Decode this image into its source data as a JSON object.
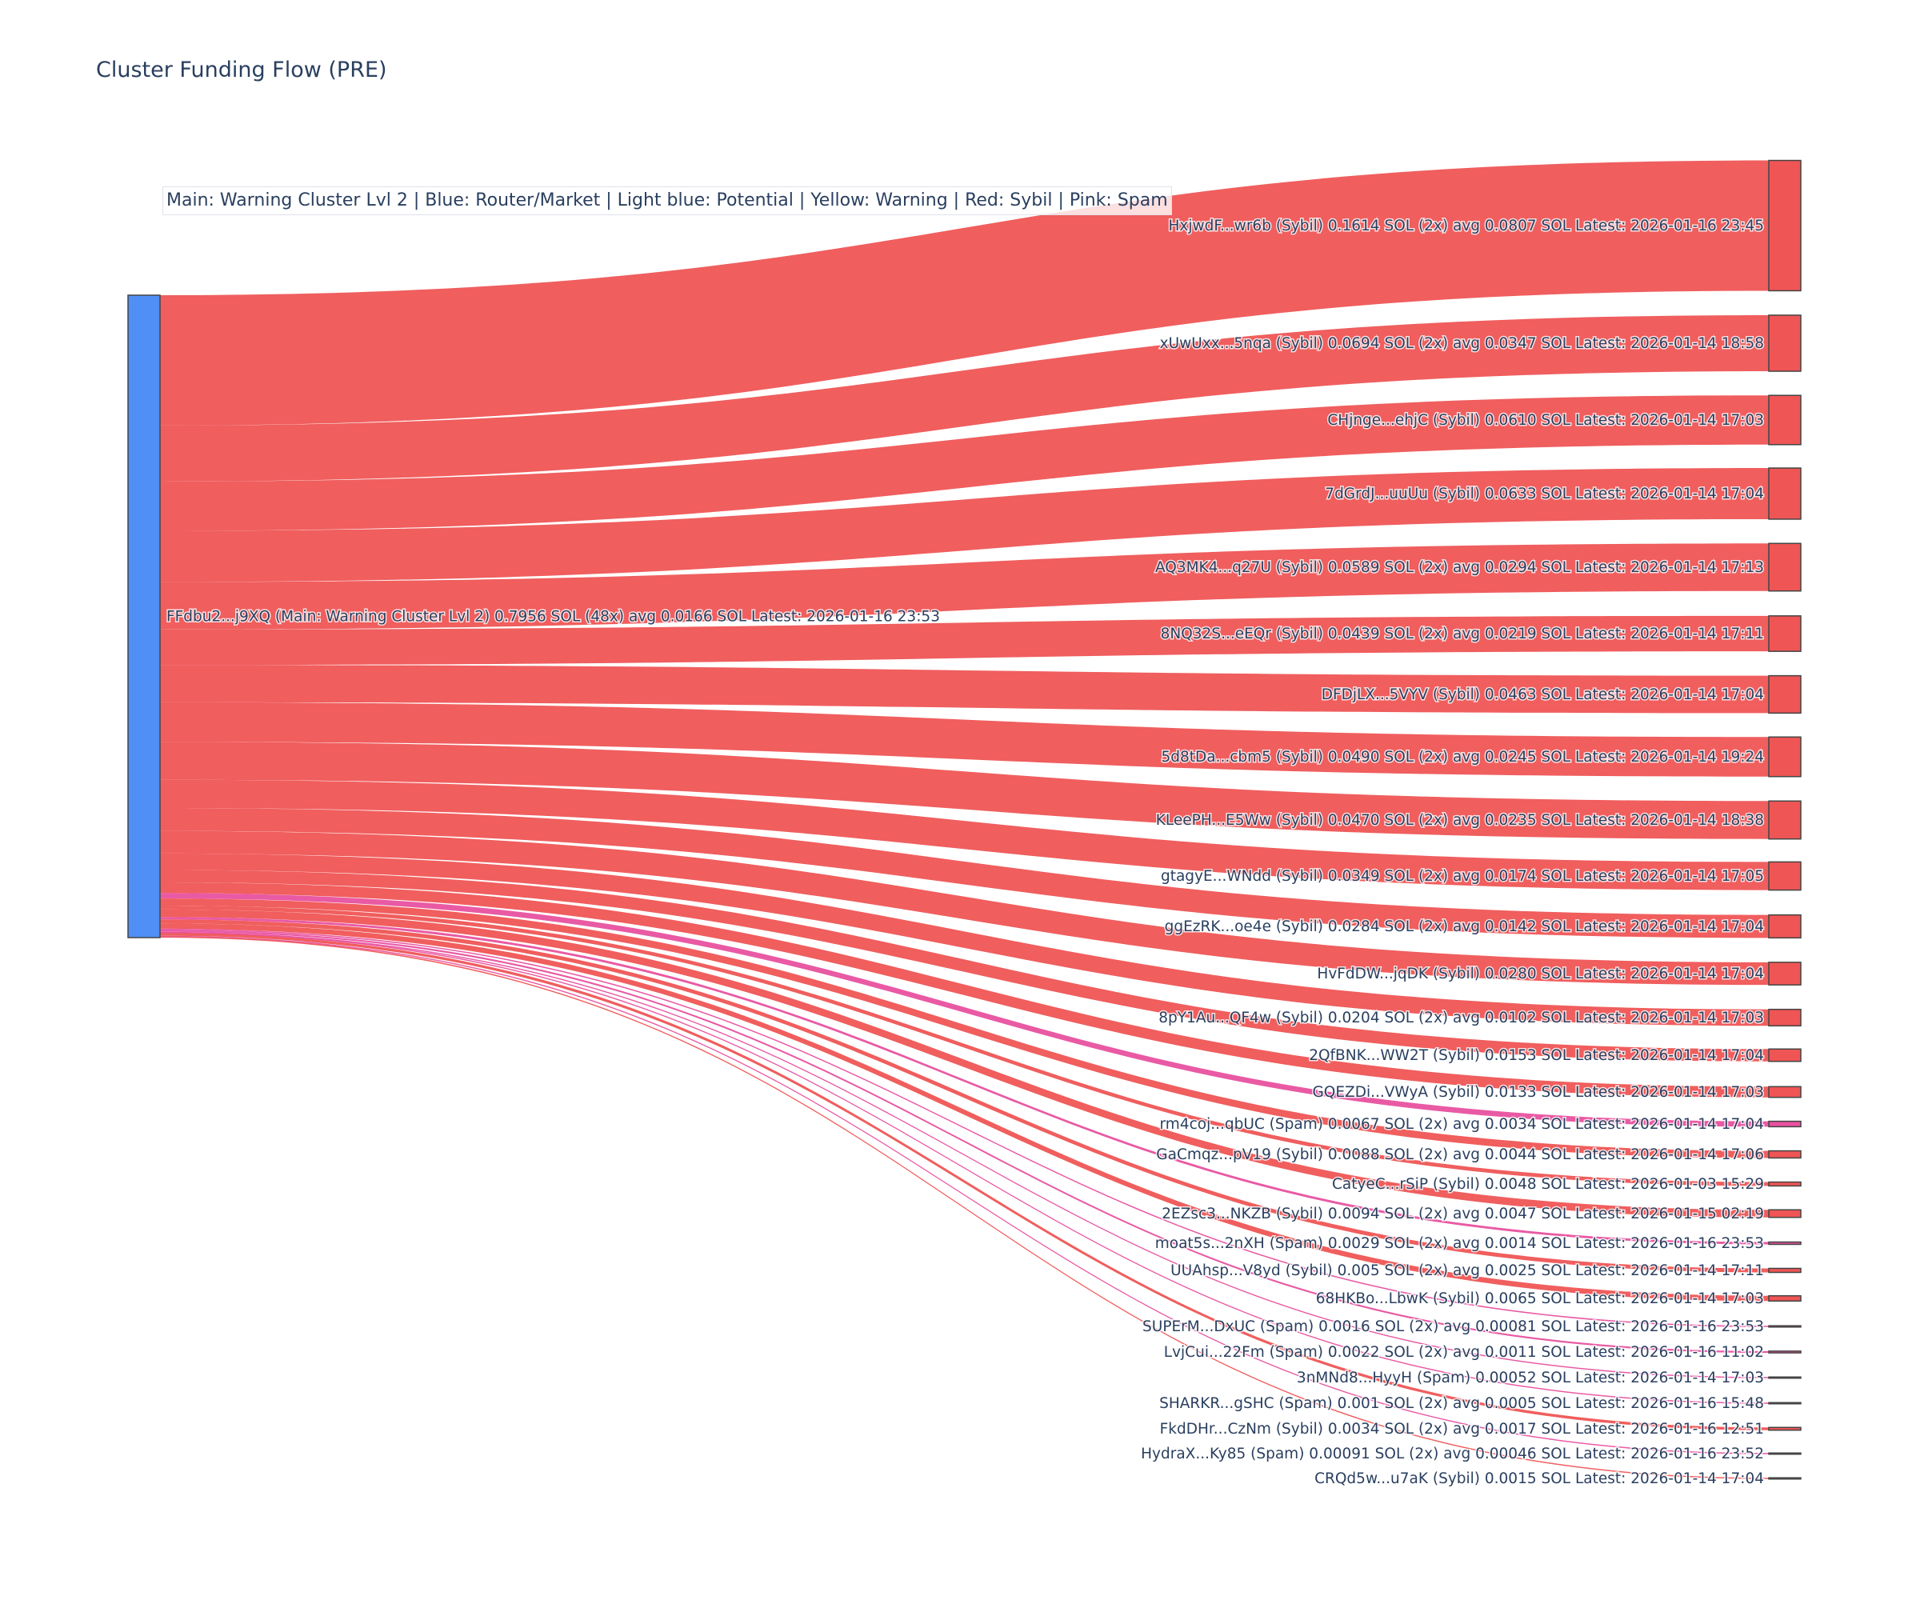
{
  "chart_data": {
    "type": "sankey",
    "title": "Cluster Funding Flow (PRE)",
    "legend_note": "Main: Warning Cluster Lvl 2  |  Blue: Router/Market | Light blue: Potential | Yellow: Warning | Red: Sybil | Pink: Spam",
    "colors": {
      "Main": "#4f8ff6",
      "Sybil": "#ef5555",
      "Spam": "#e8519f"
    },
    "source": {
      "label": "FFdbu2...j9XQ (Main: Warning Cluster Lvl 2) 0.7956 SOL (48x) avg 0.0166 SOL Latest: 2026-01-16 23:53",
      "value": 0.7956,
      "type": "Main"
    },
    "targets": [
      {
        "label": "HxjwdF...wr6b (Sybil) 0.1614 SOL (2x) avg 0.0807 SOL Latest: 2026-01-16 23:45",
        "value": 0.1614,
        "type": "Sybil"
      },
      {
        "label": "xUwUxx...5nqa (Sybil) 0.0694 SOL (2x) avg 0.0347 SOL Latest: 2026-01-14 18:58",
        "value": 0.0694,
        "type": "Sybil"
      },
      {
        "label": "CHjnge...ehjC (Sybil) 0.0610 SOL Latest: 2026-01-14 17:03",
        "value": 0.061,
        "type": "Sybil"
      },
      {
        "label": "7dGrdJ...uuUu (Sybil) 0.0633 SOL Latest: 2026-01-14 17:04",
        "value": 0.0633,
        "type": "Sybil"
      },
      {
        "label": "AQ3MK4...q27U (Sybil) 0.0589 SOL (2x) avg 0.0294 SOL Latest: 2026-01-14 17:13",
        "value": 0.0589,
        "type": "Sybil"
      },
      {
        "label": "8NQ32S...eEQr (Sybil) 0.0439 SOL (2x) avg 0.0219 SOL Latest: 2026-01-14 17:11",
        "value": 0.0439,
        "type": "Sybil"
      },
      {
        "label": "DFDjLX...5VYV (Sybil) 0.0463 SOL Latest: 2026-01-14 17:04",
        "value": 0.0463,
        "type": "Sybil"
      },
      {
        "label": "5d8tDa...cbm5 (Sybil) 0.0490 SOL (2x) avg 0.0245 SOL Latest: 2026-01-14 19:24",
        "value": 0.049,
        "type": "Sybil"
      },
      {
        "label": "KLeePH...E5Ww (Sybil) 0.0470 SOL (2x) avg 0.0235 SOL Latest: 2026-01-14 18:38",
        "value": 0.047,
        "type": "Sybil"
      },
      {
        "label": "gtagyE...WNdd (Sybil) 0.0349 SOL (2x) avg 0.0174 SOL Latest: 2026-01-14 17:05",
        "value": 0.0349,
        "type": "Sybil"
      },
      {
        "label": "ggEzRK...oe4e (Sybil) 0.0284 SOL (2x) avg 0.0142 SOL Latest: 2026-01-14 17:04",
        "value": 0.0284,
        "type": "Sybil"
      },
      {
        "label": "HvFdDW...jqDK (Sybil) 0.0280 SOL Latest: 2026-01-14 17:04",
        "value": 0.028,
        "type": "Sybil"
      },
      {
        "label": "8pY1Au...QF4w (Sybil) 0.0204 SOL (2x) avg 0.0102 SOL Latest: 2026-01-14 17:03",
        "value": 0.0204,
        "type": "Sybil"
      },
      {
        "label": "2QfBNK...WW2T (Sybil) 0.0153 SOL Latest: 2026-01-14 17:04",
        "value": 0.0153,
        "type": "Sybil"
      },
      {
        "label": "GQEZDi...VWyA (Sybil) 0.0133 SOL Latest: 2026-01-14 17:03",
        "value": 0.0133,
        "type": "Sybil"
      },
      {
        "label": "rm4coj...qbUC (Spam) 0.0067 SOL (2x) avg 0.0034 SOL Latest: 2026-01-14 17:04",
        "value": 0.0067,
        "type": "Spam"
      },
      {
        "label": "GaCmqz...pV19 (Sybil) 0.0088 SOL (2x) avg 0.0044 SOL Latest: 2026-01-14 17:06",
        "value": 0.0088,
        "type": "Sybil"
      },
      {
        "label": "CatyeC...rSiP (Sybil) 0.0048 SOL Latest: 2026-01-03 15:29",
        "value": 0.0048,
        "type": "Sybil"
      },
      {
        "label": "2EZsc3...NKZB (Sybil) 0.0094 SOL (2x) avg 0.0047 SOL Latest: 2026-01-15 02:19",
        "value": 0.0094,
        "type": "Sybil"
      },
      {
        "label": "moat5s...2nXH (Spam) 0.0029 SOL (2x) avg 0.0014 SOL Latest: 2026-01-16 23:53",
        "value": 0.0029,
        "type": "Spam"
      },
      {
        "label": "UUAhsp...V8yd (Sybil) 0.005 SOL (2x) avg 0.0025 SOL Latest: 2026-01-14 17:11",
        "value": 0.005,
        "type": "Sybil"
      },
      {
        "label": "68HKBo...LbwK (Sybil) 0.0065 SOL Latest: 2026-01-14 17:03",
        "value": 0.0065,
        "type": "Sybil"
      },
      {
        "label": "SUPErM...DxUC (Spam) 0.0016 SOL (2x) avg 0.00081 SOL Latest: 2026-01-16 23:53",
        "value": 0.0016,
        "type": "Spam"
      },
      {
        "label": "LvjCui...22Fm (Spam) 0.0022 SOL (2x) avg 0.0011 SOL Latest: 2026-01-16 11:02",
        "value": 0.0022,
        "type": "Spam"
      },
      {
        "label": "3nMNd8...HyyH (Spam) 0.00052 SOL Latest: 2026-01-14 17:03",
        "value": 0.00052,
        "type": "Spam"
      },
      {
        "label": "SHARKR...gSHC (Spam) 0.001 SOL (2x) avg 0.0005 SOL Latest: 2026-01-16 15:48",
        "value": 0.001,
        "type": "Spam"
      },
      {
        "label": "FkdDHr...CzNm (Sybil) 0.0034 SOL (2x) avg 0.0017 SOL Latest: 2026-01-16 12:51",
        "value": 0.0034,
        "type": "Sybil"
      },
      {
        "label": "HydraX...Ky85 (Spam) 0.00091 SOL (2x) avg 0.00046 SOL Latest: 2026-01-16 23:52",
        "value": 0.00091,
        "type": "Spam"
      },
      {
        "label": "CRQd5w...u7aK (Sybil) 0.0015 SOL Latest: 2026-01-14 17:04",
        "value": 0.0015,
        "type": "Sybil"
      }
    ]
  }
}
